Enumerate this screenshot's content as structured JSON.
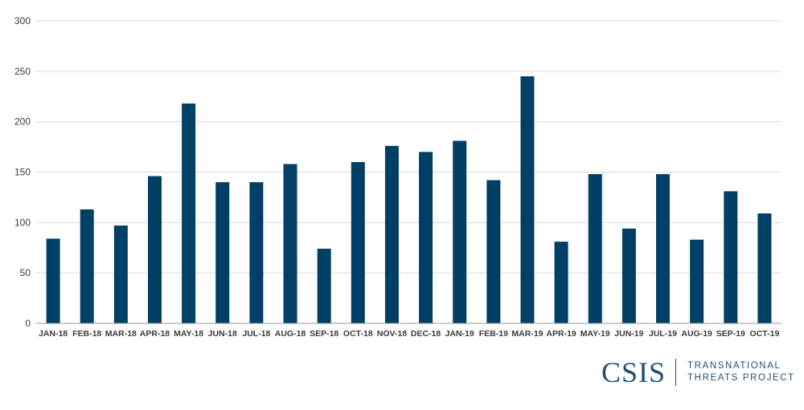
{
  "colors": {
    "bar": "#003f66",
    "grid": "#d9d9d9",
    "axis": "#9a9a9a",
    "text": "#3a3a3a",
    "brand": "#1f4f73"
  },
  "branding": {
    "mark": "CSIS",
    "line1": "TRANSNATIONAL",
    "line2": "THREATS PROJECT"
  },
  "chart_data": {
    "type": "bar",
    "title": "",
    "xlabel": "",
    "ylabel": "",
    "ylim": [
      0,
      300
    ],
    "yticks": [
      0,
      50,
      100,
      150,
      200,
      250,
      300
    ],
    "grid": true,
    "categories": [
      "JAN-18",
      "FEB-18",
      "MAR-18",
      "APR-18",
      "MAY-18",
      "JUN-18",
      "JUL-18",
      "AUG-18",
      "SEP-18",
      "OCT-18",
      "NOV-18",
      "DEC-18",
      "JAN-19",
      "FEB-19",
      "MAR-19",
      "APR-19",
      "MAY-19",
      "JUN-19",
      "JUL-19",
      "AUG-19",
      "SEP-19",
      "OCT-19"
    ],
    "values": [
      84,
      113,
      97,
      146,
      218,
      140,
      140,
      158,
      74,
      160,
      176,
      170,
      181,
      142,
      245,
      81,
      148,
      94,
      148,
      83,
      131,
      109
    ]
  }
}
